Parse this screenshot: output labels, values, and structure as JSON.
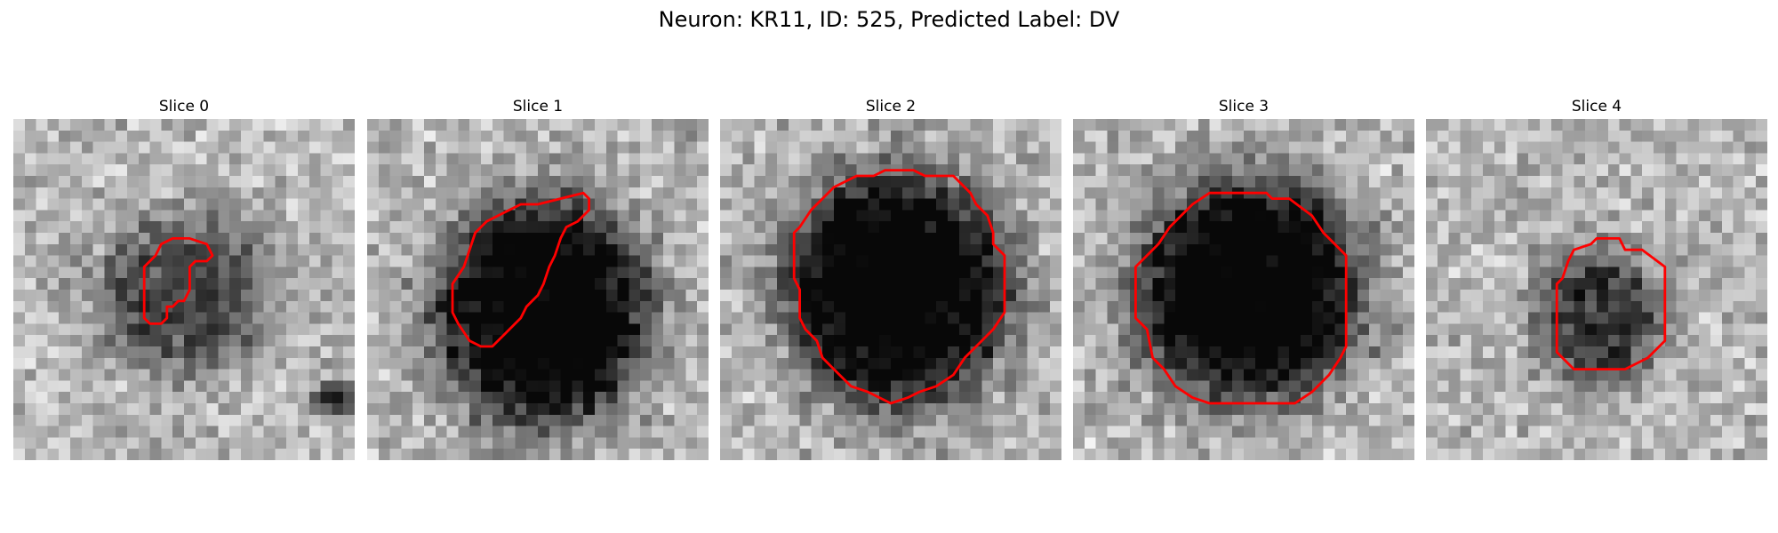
{
  "figure": {
    "title": "Neuron: KR11, ID: 525, Predicted Label: DV",
    "colormap": "gray",
    "contour_color": "#ff0000",
    "grid_size": 30
  },
  "panels": [
    {
      "title": "Slice 0",
      "blob": {
        "cx": 15.0,
        "cy": 15.5,
        "rx": 7.5,
        "ry": 6.5,
        "darkness": 0.45
      },
      "dark_spot": {
        "cx": 28.2,
        "cy": 24.5,
        "rx": 1.8,
        "ry": 1.5,
        "darkness": 0.55
      },
      "contour": [
        [
          13,
          11
        ],
        [
          14,
          10.5
        ],
        [
          15.5,
          10.5
        ],
        [
          17,
          11
        ],
        [
          17.5,
          12
        ],
        [
          17,
          12.5
        ],
        [
          16,
          12.5
        ],
        [
          15.5,
          13
        ],
        [
          15.5,
          15
        ],
        [
          15,
          16
        ],
        [
          14.5,
          16
        ],
        [
          14,
          16.5
        ],
        [
          13.5,
          16.5
        ],
        [
          13.5,
          17.5
        ],
        [
          13,
          18
        ],
        [
          12,
          18
        ],
        [
          11.5,
          17.5
        ],
        [
          11.5,
          13
        ],
        [
          12.5,
          12
        ]
      ]
    },
    {
      "title": "Slice 1",
      "blob": {
        "cx": 15.5,
        "cy": 17.0,
        "rx": 9.0,
        "ry": 9.5,
        "darkness": 0.85
      },
      "contour": [
        [
          15,
          7.5
        ],
        [
          19,
          6.5
        ],
        [
          19.5,
          7
        ],
        [
          19.5,
          8
        ],
        [
          18.5,
          9
        ],
        [
          17.5,
          9.5
        ],
        [
          17,
          10.5
        ],
        [
          16.5,
          12
        ],
        [
          16,
          13
        ],
        [
          15.5,
          14.5
        ],
        [
          15,
          15.5
        ],
        [
          14.5,
          16
        ],
        [
          14,
          16.5
        ],
        [
          13.5,
          17.5
        ],
        [
          13,
          18
        ],
        [
          12,
          19
        ],
        [
          11,
          20
        ],
        [
          10,
          20
        ],
        [
          9,
          19.5
        ],
        [
          8,
          18
        ],
        [
          7.5,
          17
        ],
        [
          7.5,
          14.5
        ],
        [
          8.5,
          13
        ],
        [
          9.5,
          10
        ],
        [
          10.5,
          9
        ],
        [
          11.5,
          8.5
        ],
        [
          12.5,
          8
        ],
        [
          13.5,
          7.5
        ]
      ]
    },
    {
      "title": "Slice 2",
      "blob": {
        "cx": 15.5,
        "cy": 15.0,
        "rx": 9.5,
        "ry": 10.0,
        "darkness": 0.85
      },
      "contour": [
        [
          12,
          5
        ],
        [
          13.5,
          5
        ],
        [
          14.5,
          4.5
        ],
        [
          17,
          4.5
        ],
        [
          18,
          5
        ],
        [
          20.5,
          5
        ],
        [
          22,
          6.5
        ],
        [
          22.5,
          7.5
        ],
        [
          23.5,
          8.5
        ],
        [
          24,
          10
        ],
        [
          24,
          11
        ],
        [
          25,
          12
        ],
        [
          25,
          17
        ],
        [
          24,
          18.5
        ],
        [
          22.5,
          20
        ],
        [
          21.5,
          21
        ],
        [
          20.5,
          22.5
        ],
        [
          19,
          23.5
        ],
        [
          17.5,
          24
        ],
        [
          16.5,
          24.5
        ],
        [
          15,
          25
        ],
        [
          14,
          24.5
        ],
        [
          13,
          24
        ],
        [
          11.5,
          23.5
        ],
        [
          10,
          22
        ],
        [
          9,
          21
        ],
        [
          8.5,
          19.5
        ],
        [
          7.5,
          18.5
        ],
        [
          7,
          17.5
        ],
        [
          7,
          15
        ],
        [
          6.5,
          14
        ],
        [
          6.5,
          10
        ],
        [
          7,
          9.5
        ],
        [
          8,
          8
        ],
        [
          9,
          7
        ],
        [
          10,
          6
        ],
        [
          11,
          5.5
        ]
      ]
    },
    {
      "title": "Slice 3",
      "blob": {
        "cx": 15.5,
        "cy": 15.0,
        "rx": 9.5,
        "ry": 9.5,
        "darkness": 0.85
      },
      "contour": [
        [
          12,
          6.5
        ],
        [
          13.5,
          6.5
        ],
        [
          14.5,
          6.5
        ],
        [
          17,
          6.5
        ],
        [
          17.5,
          7
        ],
        [
          19,
          7
        ],
        [
          21,
          8.5
        ],
        [
          22,
          10
        ],
        [
          23,
          11
        ],
        [
          24,
          12
        ],
        [
          24,
          20
        ],
        [
          23.5,
          21
        ],
        [
          22.5,
          22.5
        ],
        [
          21,
          24
        ],
        [
          19.5,
          25
        ],
        [
          18.5,
          25
        ],
        [
          18,
          25
        ],
        [
          12,
          25
        ],
        [
          10.5,
          24.5
        ],
        [
          9,
          23.5
        ],
        [
          8,
          22
        ],
        [
          7,
          21
        ],
        [
          6.5,
          18.5
        ],
        [
          5.5,
          17.5
        ],
        [
          5.5,
          13
        ],
        [
          6.5,
          12
        ],
        [
          7.5,
          11
        ],
        [
          8.5,
          9.5
        ],
        [
          9.5,
          8.5
        ],
        [
          10.5,
          7.5
        ]
      ]
    },
    {
      "title": "Slice 4",
      "blob": {
        "cx": 15.0,
        "cy": 17.5,
        "rx": 5.5,
        "ry": 6.0,
        "darkness": 0.5
      },
      "contour": [
        [
          13,
          11.5
        ],
        [
          14.5,
          11
        ],
        [
          15,
          10.5
        ],
        [
          17,
          10.5
        ],
        [
          17.5,
          11.5
        ],
        [
          19,
          11.5
        ],
        [
          21,
          13
        ],
        [
          21,
          19.5
        ],
        [
          19.5,
          21
        ],
        [
          17.5,
          22
        ],
        [
          13,
          22
        ],
        [
          11.5,
          20.5
        ],
        [
          11.5,
          14.5
        ],
        [
          12,
          14
        ],
        [
          12.5,
          12.5
        ]
      ]
    }
  ]
}
